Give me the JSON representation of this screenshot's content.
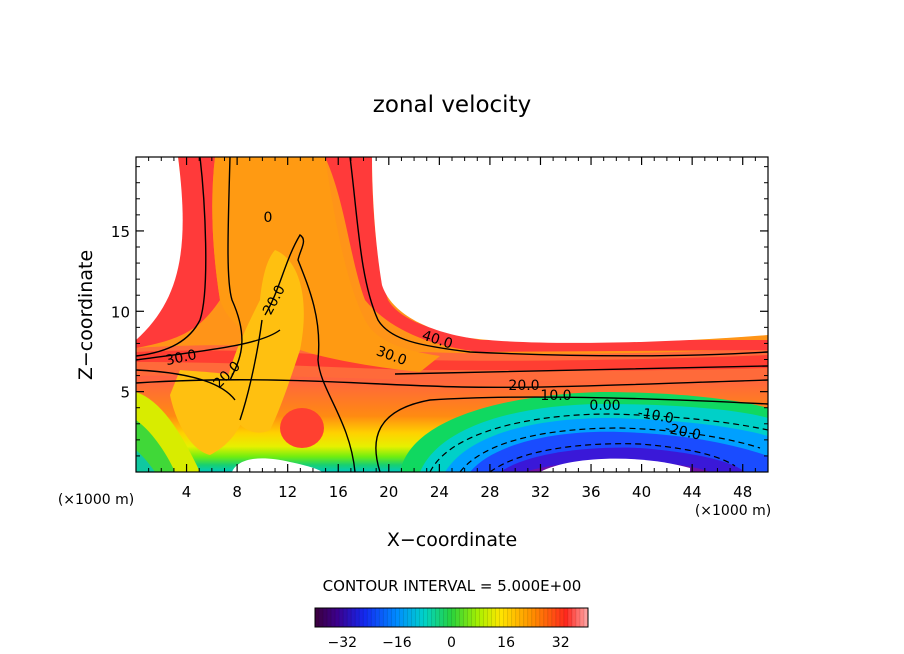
{
  "chart_data": {
    "type": "heatmap",
    "title": "zonal velocity",
    "xlabel": "X−coordinate",
    "ylabel": "Z−coordinate",
    "x_unit": "(×1000 m)",
    "xlim": [
      0,
      50
    ],
    "ylim": [
      0,
      19.6
    ],
    "x_ticks": [
      4,
      8,
      12,
      16,
      20,
      24,
      28,
      32,
      36,
      40,
      44,
      48
    ],
    "y_ticks": [
      5,
      10,
      15
    ],
    "contour_interval_label": "CONTOUR INTERVAL = 5.000E+00",
    "contour_labels": [
      {
        "text": "0",
        "x": 10.5,
        "y": 16.3
      },
      {
        "text": "20.0",
        "x": 11.0,
        "y": 11.3
      },
      {
        "text": "20.0",
        "x": 7.4,
        "y": 6.2
      },
      {
        "text": "30.0",
        "x": 3.4,
        "y": 7.4
      },
      {
        "text": "30.0",
        "x": 20.0,
        "y": 7.6
      },
      {
        "text": "40.0",
        "x": 23.5,
        "y": 8.4
      },
      {
        "text": "20.0",
        "x": 30.0,
        "y": 5.4
      },
      {
        "text": "10.0",
        "x": 33.0,
        "y": 4.7
      },
      {
        "text": "0.00",
        "x": 37.0,
        "y": 4.2
      },
      {
        "text": "-10.0",
        "x": 41.0,
        "y": 3.5
      },
      {
        "text": "-20.0",
        "x": 43.5,
        "y": 2.6
      }
    ],
    "colorbar": {
      "range": [
        -40,
        40
      ],
      "ticks": [
        "−32",
        "−16",
        "0",
        "16",
        "32"
      ],
      "tick_values": [
        -32,
        -16,
        0,
        16,
        32
      ]
    }
  }
}
